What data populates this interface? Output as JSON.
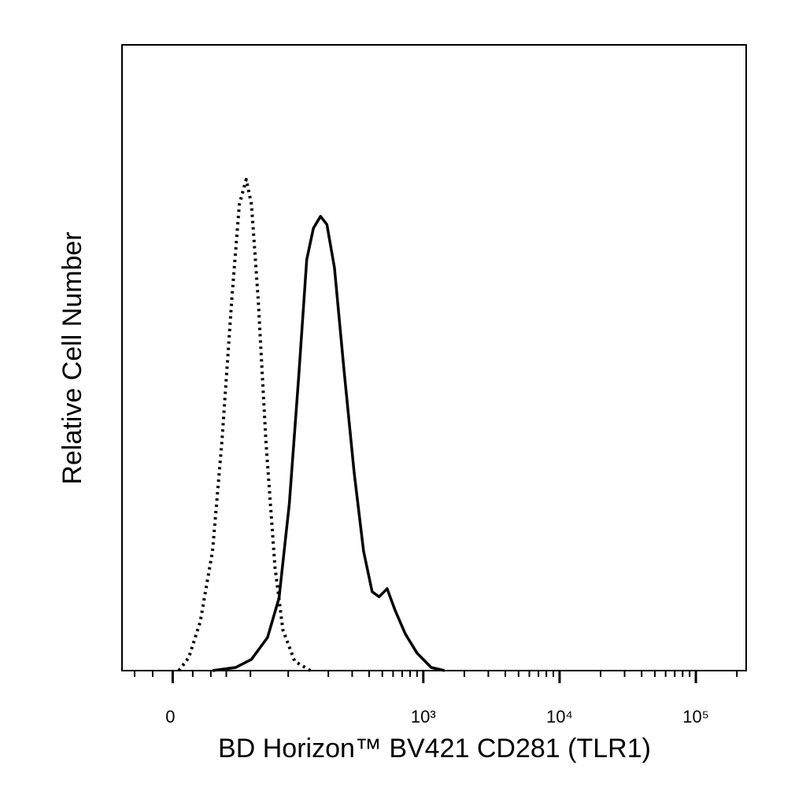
{
  "chart_data": {
    "type": "line",
    "xlabel": "BD Horizon™ BV421  CD281 (TLR1)",
    "ylabel": "Relative Cell Number",
    "xscale": "biexponential",
    "xlim": [
      -28,
      234000
    ],
    "xticks": [
      0,
      {
        "value": 1000,
        "label": "10³"
      },
      {
        "value": 10000,
        "label": "10⁴"
      },
      {
        "value": 100000,
        "label": "10⁵"
      }
    ],
    "xminorticks": [
      -20,
      -10,
      10,
      20,
      30,
      50,
      100,
      200,
      300,
      400,
      500,
      600,
      700,
      800,
      900,
      2000,
      3000,
      4000,
      5000,
      6000,
      7000,
      8000,
      9000,
      20000,
      30000,
      40000,
      50000,
      60000,
      70000,
      80000,
      90000,
      200000
    ],
    "ylim": [
      0,
      100
    ],
    "series": [
      {
        "style": "dotted",
        "color": "#000000",
        "x": [
          3,
          8,
          14,
          21,
          27,
          34,
          40,
          46,
          51,
          58,
          67,
          79,
          91,
          112,
          147
        ],
        "values": [
          0,
          2.1,
          7.8,
          19.1,
          36.7,
          59.4,
          74.5,
          78.5,
          74.5,
          59.4,
          36.7,
          16.6,
          6.5,
          1.5,
          0
        ]
      },
      {
        "style": "solid",
        "color": "#000000",
        "x": [
          21,
          37,
          51,
          69,
          85,
          102,
          120,
          138,
          155,
          175,
          195,
          222,
          261,
          310,
          364,
          421,
          474,
          542,
          619,
          736,
          899,
          1142,
          1432
        ],
        "values": [
          0,
          0.5,
          1.8,
          5.3,
          11.6,
          26.7,
          46.8,
          65.7,
          70.7,
          72.6,
          71.3,
          64.4,
          48.1,
          31.7,
          19.1,
          12.6,
          11.8,
          13.1,
          9.7,
          5.9,
          2.8,
          0.5,
          0
        ]
      }
    ]
  }
}
